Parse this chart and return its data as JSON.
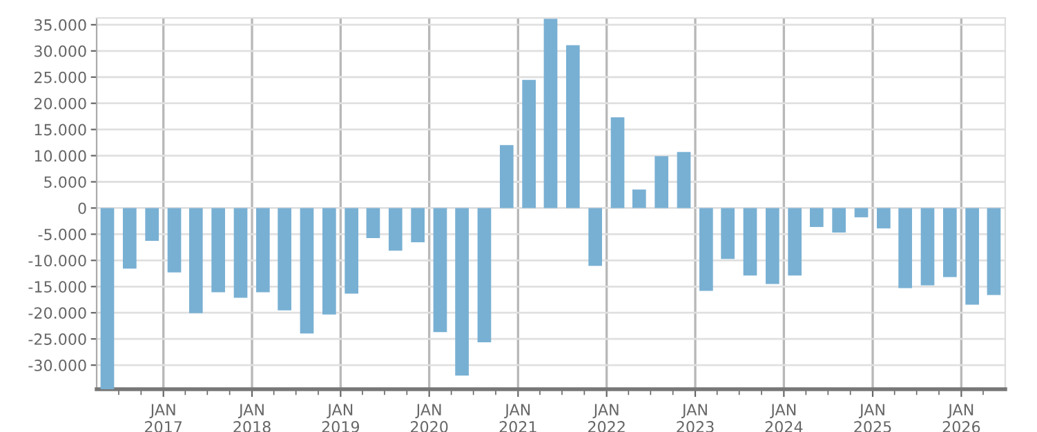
{
  "chart_data": {
    "type": "bar",
    "x": [
      "2016-05-15",
      "2016-08-15",
      "2016-11-15",
      "2017-02-15",
      "2017-05-15",
      "2017-08-15",
      "2017-11-15",
      "2018-02-15",
      "2018-05-15",
      "2018-08-15",
      "2018-11-15",
      "2019-02-15",
      "2019-05-15",
      "2019-08-15",
      "2019-11-15",
      "2020-02-15",
      "2020-05-15",
      "2020-08-15",
      "2020-11-15",
      "2021-02-15",
      "2021-05-15",
      "2021-08-15",
      "2021-11-15",
      "2022-02-15",
      "2022-05-15",
      "2022-08-15",
      "2022-11-15",
      "2023-02-15",
      "2023-05-15",
      "2023-08-15",
      "2023-11-15",
      "2024-02-15",
      "2024-05-15",
      "2024-08-15",
      "2024-11-15",
      "2025-02-15",
      "2025-05-15",
      "2025-08-15",
      "2025-11-15",
      "2026-02-15",
      "2026-05-15"
    ],
    "values": [
      -34600,
      -11580,
      -6280,
      -12290,
      -20060,
      -16090,
      -17150,
      -16090,
      -19530,
      -23950,
      -20330,
      -16350,
      -5750,
      -8130,
      -6540,
      -23690,
      -32000,
      -25630,
      12020,
      24480,
      36150,
      31110,
      -11050,
      17320,
      3540,
      9900,
      10700,
      -15820,
      -9720,
      -12900,
      -14500,
      -12900,
      -3620,
      -4680,
      -1770,
      -3890,
      -15290,
      -14760,
      -13170,
      -18470,
      -16620
    ],
    "color": "#78b0d3",
    "xlim": [
      "2016-04-01",
      "2026-07-01"
    ],
    "xticks": [
      {
        "value": "2016-07-01",
        "label": null
      },
      {
        "value": "2016-10-01",
        "label": null
      },
      {
        "value": "2017-01-01",
        "label": "JAN\n2017"
      },
      {
        "value": "2017-04-01",
        "label": null
      },
      {
        "value": "2017-07-01",
        "label": null
      },
      {
        "value": "2017-10-01",
        "label": null
      },
      {
        "value": "2018-01-01",
        "label": "JAN\n2018"
      },
      {
        "value": "2018-04-01",
        "label": null
      },
      {
        "value": "2018-07-01",
        "label": null
      },
      {
        "value": "2018-10-01",
        "label": null
      },
      {
        "value": "2019-01-01",
        "label": "JAN\n2019"
      },
      {
        "value": "2019-04-01",
        "label": null
      },
      {
        "value": "2019-07-01",
        "label": null
      },
      {
        "value": "2019-10-01",
        "label": null
      },
      {
        "value": "2020-01-01",
        "label": "JAN\n2020"
      },
      {
        "value": "2020-04-01",
        "label": null
      },
      {
        "value": "2020-07-01",
        "label": null
      },
      {
        "value": "2020-10-01",
        "label": null
      },
      {
        "value": "2021-01-01",
        "label": "JAN\n2021"
      },
      {
        "value": "2021-04-01",
        "label": null
      },
      {
        "value": "2021-07-01",
        "label": null
      },
      {
        "value": "2021-10-01",
        "label": null
      },
      {
        "value": "2022-01-01",
        "label": "JAN\n2022"
      },
      {
        "value": "2022-04-01",
        "label": null
      },
      {
        "value": "2022-07-01",
        "label": null
      },
      {
        "value": "2022-10-01",
        "label": null
      },
      {
        "value": "2023-01-01",
        "label": "JAN\n2023"
      },
      {
        "value": "2023-04-01",
        "label": null
      },
      {
        "value": "2023-07-01",
        "label": null
      },
      {
        "value": "2023-10-01",
        "label": null
      },
      {
        "value": "2024-01-01",
        "label": "JAN\n2024"
      },
      {
        "value": "2024-04-01",
        "label": null
      },
      {
        "value": "2024-07-01",
        "label": null
      },
      {
        "value": "2024-10-01",
        "label": null
      },
      {
        "value": "2025-01-01",
        "label": "JAN\n2025"
      },
      {
        "value": "2025-04-01",
        "label": null
      },
      {
        "value": "2025-07-01",
        "label": null
      },
      {
        "value": "2025-10-01",
        "label": null
      },
      {
        "value": "2026-01-01",
        "label": "JAN\n2026"
      },
      {
        "value": "2026-04-01",
        "label": null
      }
    ],
    "ylim": [
      -34600,
      36300
    ],
    "yticks": [
      {
        "value": -30000,
        "label": "-30.000"
      },
      {
        "value": -25000,
        "label": "-25.000"
      },
      {
        "value": -20000,
        "label": "-20.000"
      },
      {
        "value": -15000,
        "label": "-15.000"
      },
      {
        "value": -10000,
        "label": "-10.000"
      },
      {
        "value": -5000,
        "label": "-5.000"
      },
      0,
      {
        "value": 5000,
        "label": "5.000"
      },
      {
        "value": 10000,
        "label": "10.000"
      },
      {
        "value": 15000,
        "label": "15.000"
      },
      {
        "value": 20000,
        "label": "20.000"
      },
      {
        "value": 25000,
        "label": "25.000"
      },
      {
        "value": 30000,
        "label": "30.000"
      },
      {
        "value": 35000,
        "label": "35.000"
      }
    ],
    "grid": true
  }
}
